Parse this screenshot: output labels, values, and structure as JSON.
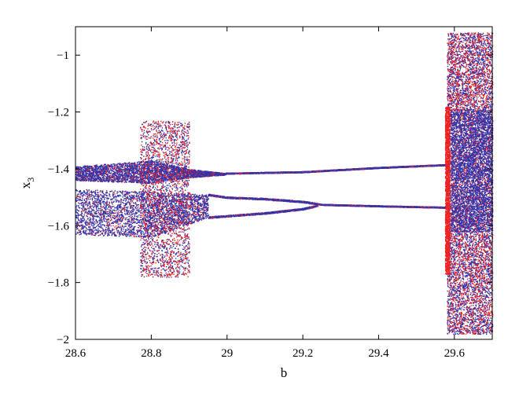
{
  "chart_data": {
    "type": "scatter",
    "title": "",
    "xlabel": "b",
    "ylabel": "x",
    "ylabel_subscript": "3",
    "xlim": [
      28.6,
      29.7
    ],
    "ylim": [
      -2.0,
      -0.9
    ],
    "x_ticks": [
      28.6,
      28.8,
      29.0,
      29.2,
      29.4,
      29.6
    ],
    "x_tick_labels": [
      "28.6",
      "28.8",
      "29",
      "29.2",
      "29.4",
      "29.6"
    ],
    "y_ticks": [
      -1.0,
      -1.2,
      -1.4,
      -1.6,
      -1.8,
      -2.0
    ],
    "y_tick_labels": [
      "−1",
      "−1.2",
      "−1.4",
      "−1.6",
      "−1.8",
      "−2"
    ],
    "grid": false,
    "legend": "none",
    "series": [
      {
        "color": "#ee2222",
        "description_points": "bifurcation points (red)"
      },
      {
        "color": "#3333aa",
        "description_points": "bifurcation points (blue)"
      }
    ],
    "bifurcation_structure": {
      "upper_branch": [
        {
          "x": 28.6,
          "y": [
            -1.39,
            -1.44
          ]
        },
        {
          "x": 28.8,
          "y": [
            -1.37,
            -1.45
          ]
        },
        {
          "x": 28.9,
          "y": [
            -1.4,
            -1.43
          ]
        },
        {
          "x": 29.0,
          "y": [
            -1.415,
            -1.42
          ]
        },
        {
          "x": 29.2,
          "y": [
            -1.41,
            -1.41
          ]
        },
        {
          "x": 29.4,
          "y": [
            -1.395,
            -1.395
          ]
        },
        {
          "x": 29.58,
          "y": [
            -1.385,
            -1.385
          ]
        }
      ],
      "lower_branch": [
        {
          "x": 28.6,
          "y": [
            -1.47,
            -1.63
          ]
        },
        {
          "x": 28.8,
          "y": [
            -1.48,
            -1.64
          ]
        },
        {
          "x": 28.95,
          "y": [
            -1.49,
            -1.57
          ]
        },
        {
          "x": 29.0,
          "y": [
            -1.5,
            -1.565
          ]
        },
        {
          "x": 29.1,
          "y": [
            -1.505,
            -1.555
          ]
        },
        {
          "x": 29.2,
          "y": [
            -1.515,
            -1.54
          ]
        },
        {
          "x": 29.25,
          "y": [
            -1.525,
            -1.525
          ]
        },
        {
          "x": 29.4,
          "y": [
            -1.53,
            -1.53
          ]
        },
        {
          "x": 29.58,
          "y": [
            -1.535,
            -1.535
          ]
        }
      ],
      "chaotic_band_1": {
        "x": [
          28.77,
          28.9
        ],
        "y": [
          -1.78,
          -1.23
        ]
      },
      "chaotic_band_2": {
        "x": [
          29.58,
          29.7
        ],
        "y": [
          -1.98,
          -0.92
        ]
      }
    }
  }
}
